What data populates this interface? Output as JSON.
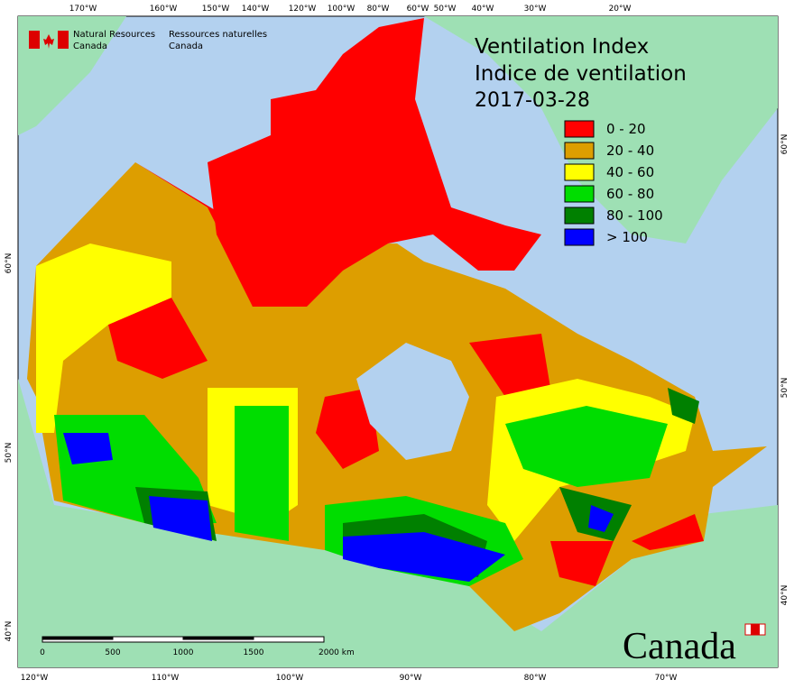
{
  "header": {
    "agency_en": [
      "Natural Resources",
      "Canada"
    ],
    "agency_fr": [
      "Ressources naturelles",
      "Canada"
    ]
  },
  "title": {
    "line1": "Ventilation Index",
    "line2": "Indice de ventilation",
    "date": "2017-03-28"
  },
  "legend": [
    {
      "label": "0 - 20",
      "color": "#ff0000"
    },
    {
      "label": "20 - 40",
      "color": "#dd9e00"
    },
    {
      "label": "40 - 60",
      "color": "#ffff00"
    },
    {
      "label": "60 - 80",
      "color": "#00dd00"
    },
    {
      "label": "80 - 100",
      "color": "#008000"
    },
    {
      "label": "> 100",
      "color": "#0000ff"
    }
  ],
  "longitude_top": [
    "170°W",
    "160°W",
    "150°W",
    "140°W",
    "120°W",
    "100°W",
    "80°W",
    "60°W",
    "50°W",
    "40°W",
    "30°W",
    "20°W"
  ],
  "longitude_bottom": [
    "120°W",
    "110°W",
    "100°W",
    "90°W",
    "80°W",
    "70°W"
  ],
  "latitude_left": [
    "60°N",
    "50°N",
    "40°N"
  ],
  "latitude_right": [
    "60°N",
    "50°N",
    "40°N"
  ],
  "scale": [
    "0",
    "500",
    "1000",
    "1500",
    "2000  km"
  ],
  "wordmark": "Canada"
}
